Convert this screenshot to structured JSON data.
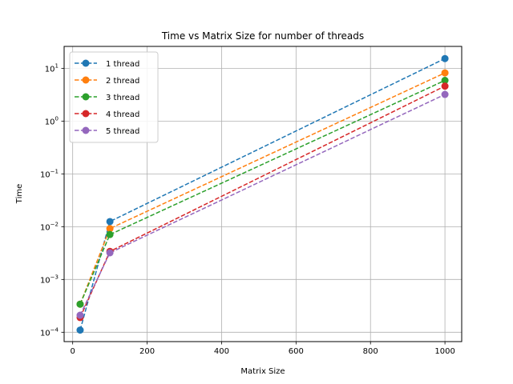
{
  "chart_data": {
    "type": "line",
    "title": "Time vs Matrix Size for number of threads",
    "xlabel": "Matrix Size",
    "ylabel": "Time",
    "x": [
      20,
      100,
      1000
    ],
    "xlim": [
      -23,
      1045
    ],
    "ylim": [
      6.65e-05,
      26
    ],
    "yscale": "log",
    "grid": true,
    "legend_position": "top-left",
    "x_ticks": [
      {
        "value": 0,
        "label": "0"
      },
      {
        "value": 200,
        "label": "200"
      },
      {
        "value": 400,
        "label": "400"
      },
      {
        "value": 600,
        "label": "600"
      },
      {
        "value": 800,
        "label": "800"
      },
      {
        "value": 1000,
        "label": "1000"
      }
    ],
    "y_ticks": [
      {
        "value": 0.0001,
        "base": "10",
        "exp": "−4"
      },
      {
        "value": 0.001,
        "base": "10",
        "exp": "−3"
      },
      {
        "value": 0.01,
        "base": "10",
        "exp": "−2"
      },
      {
        "value": 0.1,
        "base": "10",
        "exp": "−1"
      },
      {
        "value": 1,
        "base": "10",
        "exp": "0"
      },
      {
        "value": 10,
        "base": "10",
        "exp": "1"
      }
    ],
    "series": [
      {
        "name": "1 thread",
        "color": "#1f77b4",
        "values": [
          0.00011,
          0.0125,
          15.3
        ]
      },
      {
        "name": "2 thread",
        "color": "#ff7f0e",
        "values": [
          0.00034,
          0.0092,
          8.2
        ]
      },
      {
        "name": "3 thread",
        "color": "#2ca02c",
        "values": [
          0.00034,
          0.0071,
          5.9
        ]
      },
      {
        "name": "4 thread",
        "color": "#d62728",
        "values": [
          0.00019,
          0.0034,
          4.6
        ]
      },
      {
        "name": "5 thread",
        "color": "#9467bd",
        "values": [
          0.00021,
          0.0032,
          3.2
        ]
      }
    ]
  }
}
